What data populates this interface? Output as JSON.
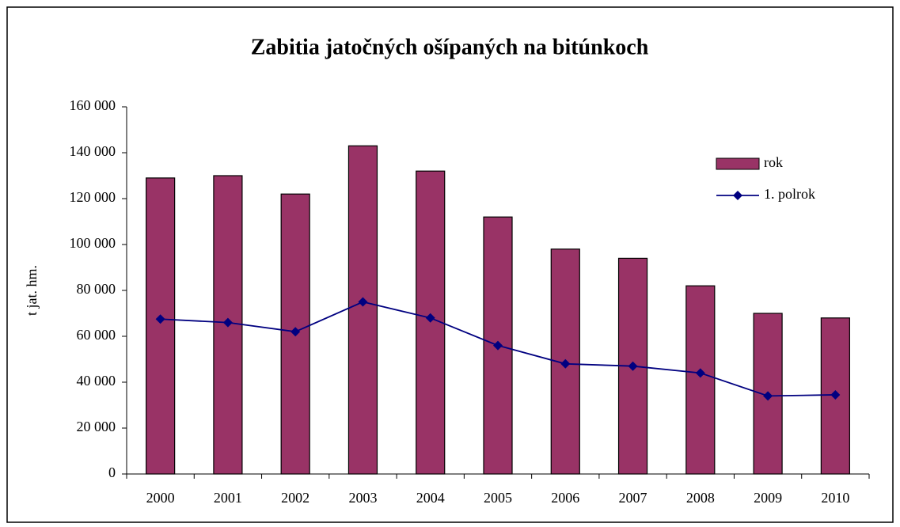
{
  "chart_data": {
    "type": "bar",
    "title": "Zabitia jatočných ošípaných na bitúnkoch",
    "y_label": "t jat. hm.",
    "categories": [
      "2000",
      "2001",
      "2002",
      "2003",
      "2004",
      "2005",
      "2006",
      "2007",
      "2008",
      "2009",
      "2010"
    ],
    "series": [
      {
        "name": "rok",
        "type": "bar",
        "color": "#993366",
        "values": [
          129000,
          130000,
          122000,
          143000,
          132000,
          112000,
          98000,
          94000,
          82000,
          70000,
          68000
        ]
      },
      {
        "name": "1. polrok",
        "type": "line",
        "color": "#000080",
        "values": [
          67500,
          66000,
          62000,
          75000,
          68000,
          56000,
          48000,
          47000,
          44000,
          34000,
          34500
        ]
      }
    ],
    "ylim": [
      0,
      160000
    ],
    "yticks": [
      0,
      {
        "value": 20000,
        "label": "20 000"
      },
      {
        "value": 40000,
        "label": "40 000"
      },
      {
        "value": 60000,
        "label": "60 000"
      },
      {
        "value": 80000,
        "label": "80 000"
      },
      {
        "value": 100000,
        "label": "100 000"
      },
      {
        "value": 120000,
        "label": "120 000"
      },
      {
        "value": 140000,
        "label": "140 000"
      },
      {
        "value": 160000,
        "label": "160 000"
      }
    ],
    "grid": false,
    "legend": "right"
  }
}
